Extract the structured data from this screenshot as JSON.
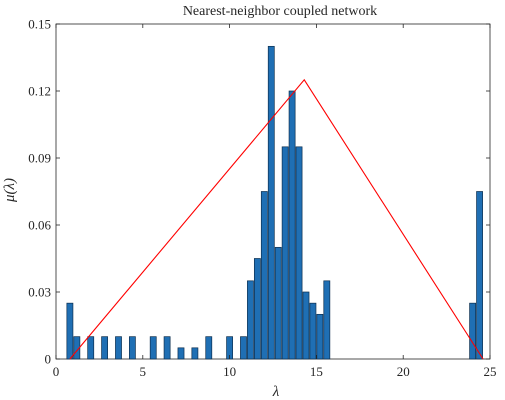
{
  "chart_data": {
    "type": "bar",
    "title": "Nearest-neighbor coupled network",
    "xlabel": "λ",
    "ylabel": "μ(λ)",
    "xlim": [
      0,
      25
    ],
    "ylim": [
      0,
      0.15
    ],
    "xticks": [
      0,
      5,
      10,
      15,
      20,
      25
    ],
    "xtick_labels": [
      "0",
      "5",
      "10",
      "15",
      "20",
      "25"
    ],
    "yticks": [
      0,
      0.03,
      0.06,
      0.09,
      0.12,
      0.15
    ],
    "ytick_labels": [
      "0",
      "0.03",
      "0.06",
      "0.09",
      "0.12",
      "0.15"
    ],
    "grid": false,
    "bar_color": "#1f6fb4",
    "bar_edge_color": "#0d2f4f",
    "bar_width": 0.35,
    "series": [
      {
        "type": "bar",
        "x": [
          0.8,
          1.2,
          2.0,
          2.8,
          3.6,
          4.4,
          5.6,
          6.4,
          7.2,
          8.0,
          8.8,
          10.0,
          10.8,
          11.2,
          11.6,
          12.0,
          12.4,
          12.8,
          13.2,
          13.6,
          14.0,
          14.4,
          14.8,
          15.2,
          15.6,
          24.0,
          24.4
        ],
        "values": [
          0.025,
          0.01,
          0.01,
          0.01,
          0.01,
          0.01,
          0.01,
          0.01,
          0.005,
          0.005,
          0.01,
          0.01,
          0.01,
          0.035,
          0.045,
          0.075,
          0.14,
          0.05,
          0.095,
          0.12,
          0.095,
          0.03,
          0.025,
          0.02,
          0.035,
          0.025,
          0.075
        ]
      },
      {
        "type": "line",
        "color": "#ff0000",
        "x": [
          0.8,
          14.3,
          24.6
        ],
        "values": [
          0.0,
          0.125,
          0.0
        ]
      }
    ]
  }
}
